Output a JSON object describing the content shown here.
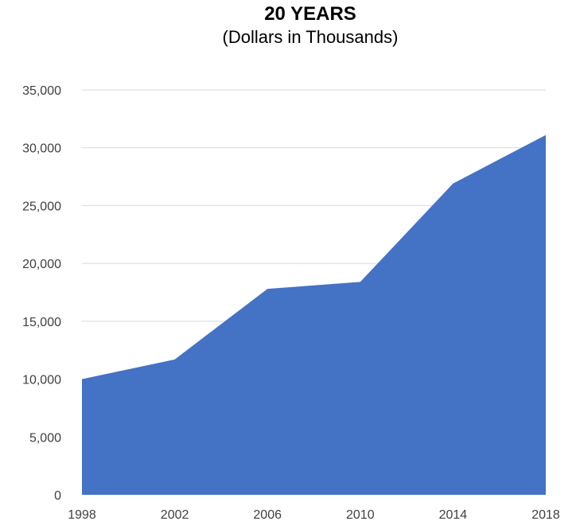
{
  "chart_data": {
    "type": "area",
    "title": "20 YEARS",
    "subtitle": "(Dollars in Thousands)",
    "xlabel": "",
    "ylabel": "",
    "categories": [
      "1998",
      "2002",
      "2006",
      "2010",
      "2014",
      "2018"
    ],
    "series": [
      {
        "values": [
          10000,
          11700,
          17800,
          18400,
          26900,
          31100
        ]
      }
    ],
    "ylim": [
      0,
      35000
    ],
    "yticks": [
      0,
      5000,
      10000,
      15000,
      20000,
      25000,
      30000,
      35000
    ],
    "ytick_labels": [
      "0",
      "5,000",
      "10,000",
      "15,000",
      "20,000",
      "25,000",
      "30,000",
      "35,000"
    ],
    "grid": true,
    "legend": "none",
    "colors": {
      "fill": "#4472C4",
      "grid": "#D9D9D9",
      "text": "#404040"
    }
  }
}
